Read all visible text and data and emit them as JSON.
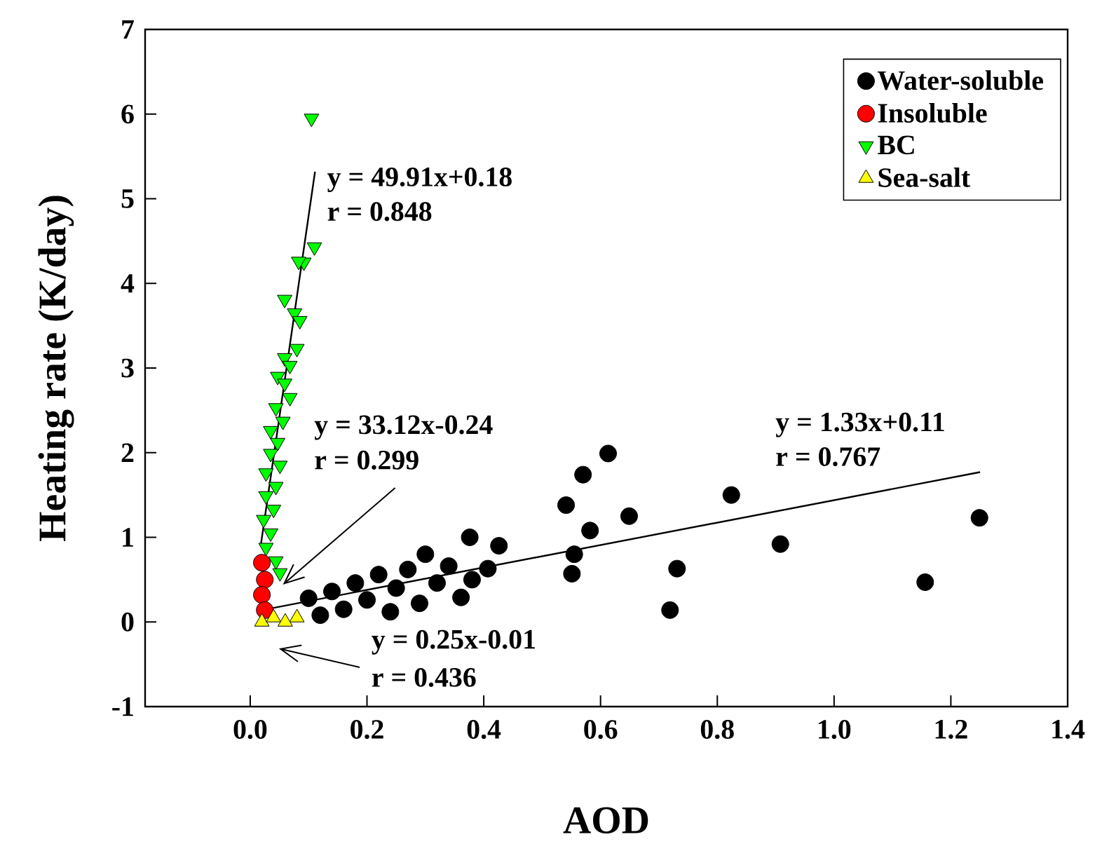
{
  "chart_data": {
    "type": "scatter",
    "xlabel": "AOD",
    "ylabel": "Heating rate (K/day)",
    "xlim": [
      -0.18,
      1.4
    ],
    "ylim": [
      -1,
      7
    ],
    "xticks": [
      {
        "value": 0,
        "label": "0.0"
      },
      {
        "value": 0.2,
        "label": "0.2"
      },
      {
        "value": 0.4,
        "label": "0.4"
      },
      {
        "value": 0.6,
        "label": "0.6"
      },
      {
        "value": 0.8,
        "label": "0.8"
      },
      {
        "value": 1,
        "label": "1.0"
      },
      {
        "value": 1.2,
        "label": "1.2"
      },
      {
        "value": 1.4,
        "label": "1.4"
      }
    ],
    "yticks": [
      -1,
      0,
      1,
      2,
      3,
      4,
      5,
      6,
      7
    ],
    "legend": "top right",
    "grid": false,
    "series": [
      {
        "name": "Water-soluble",
        "color": "#000000",
        "marker": "circle",
        "x": [
          0.1,
          0.12,
          0.14,
          0.16,
          0.18,
          0.2,
          0.22,
          0.24,
          0.25,
          0.27,
          0.29,
          0.3,
          0.32,
          0.34,
          0.361,
          0.376,
          0.38,
          0.407,
          0.426,
          0.613,
          0.57,
          0.541,
          0.582,
          0.649,
          0.555,
          0.551,
          0.731,
          0.719,
          0.824,
          0.908,
          1.156,
          1.249
        ],
        "values": [
          0.28,
          0.08,
          0.36,
          0.15,
          0.46,
          0.26,
          0.56,
          0.12,
          0.4,
          0.62,
          0.22,
          0.8,
          0.46,
          0.66,
          0.29,
          1.0,
          0.5,
          0.63,
          0.9,
          1.99,
          1.74,
          1.38,
          1.08,
          1.25,
          0.8,
          0.57,
          0.63,
          0.14,
          1.5,
          0.92,
          0.47,
          1.23
        ]
      },
      {
        "name": "Insoluble",
        "color": "#ff0000",
        "marker": "circle",
        "x": [
          0.02,
          0.025,
          0.02,
          0.025
        ],
        "values": [
          0.7,
          0.5,
          0.32,
          0.14
        ]
      },
      {
        "name": "BC",
        "color": "#00ff00",
        "marker": "triangle-down",
        "x": [
          0.105,
          0.11,
          0.092,
          0.083,
          0.059,
          0.076,
          0.085,
          0.08,
          0.059,
          0.068,
          0.047,
          0.059,
          0.068,
          0.044,
          0.056,
          0.035,
          0.047,
          0.035,
          0.051,
          0.027,
          0.044,
          0.027,
          0.04,
          0.023,
          0.035,
          0.027,
          0.044,
          0.051
        ],
        "values": [
          5.95,
          4.43,
          4.25,
          4.26,
          3.81,
          3.65,
          3.56,
          3.23,
          3.12,
          3.03,
          2.9,
          2.82,
          2.65,
          2.53,
          2.37,
          2.26,
          2.12,
          1.99,
          1.85,
          1.76,
          1.6,
          1.49,
          1.33,
          1.21,
          1.05,
          0.88,
          0.72,
          0.58
        ]
      },
      {
        "name": "Sea-salt",
        "color": "#ffff00",
        "marker": "triangle",
        "x": [
          0.02,
          0.04,
          0.06,
          0.08
        ],
        "values": [
          0.0,
          0.05,
          0.0,
          0.05
        ]
      },
      {
        "type": "line",
        "color": "#000000",
        "marker": "none",
        "x": [
          0.02,
          1.25
        ],
        "values": [
          0.14,
          1.77
        ]
      },
      {
        "type": "line",
        "color": "#000000",
        "marker": "none",
        "x": [
          0.018,
          0.111
        ],
        "values": [
          0.9,
          5.32
        ]
      }
    ],
    "annotations": [
      "y = 49.91x+0.18",
      "r = 0.848",
      "y = 33.12x-0.24",
      {
        "text": "r = 0.299",
        "x": 0.056,
        "y": 0.44
      },
      "y = 1.33x+0.11",
      "r = 0.767",
      "y = 0.25x-0.01",
      "r = 0.436"
    ]
  }
}
